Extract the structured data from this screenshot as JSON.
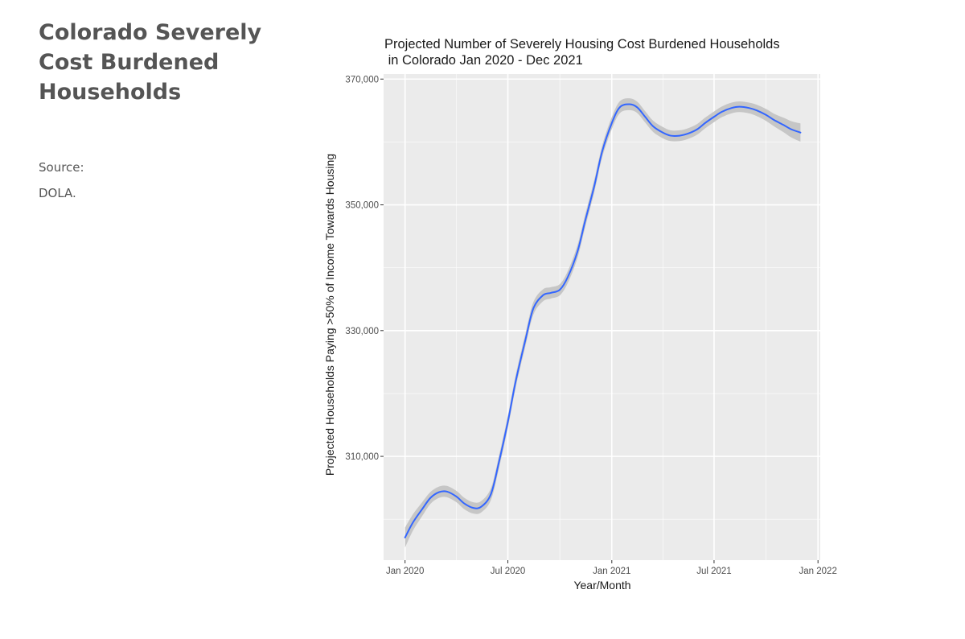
{
  "sidebar": {
    "title": "Colorado Severely Cost Burdened Households",
    "source_label": "Source:",
    "source_value": "DOLA."
  },
  "colors": {
    "panel": "#EBEBEB",
    "grid_major": "#FFFFFF",
    "line": "#3366FF",
    "ribbon": "#C4C4C4"
  },
  "chart_data": {
    "type": "line",
    "title_lines": [
      "Projected Number of Severely Housing Cost Burdened Households",
      " in Colorado Jan 2020 - Dec 2021"
    ],
    "xlabel": "Year/Month",
    "ylabel": "Projected Households Paying >50% of Income Towards Housing",
    "xlim": [
      "2019-11-24",
      "2022-01-05"
    ],
    "ylim": [
      293500,
      370800
    ],
    "x_ticks": [
      "2020-01-01",
      "2020-07-01",
      "2021-01-01",
      "2021-07-01",
      "2022-01-01"
    ],
    "x_tick_labels": [
      "Jan 2020",
      "Jul 2020",
      "Jan 2021",
      "Jul 2021",
      "Jan 2022"
    ],
    "y_ticks": [
      310000,
      330000,
      350000,
      370000
    ],
    "y_tick_labels": [
      "310,000",
      "330,000",
      "350,000",
      "370,000"
    ],
    "y_minor_ticks": [
      300000,
      320000,
      340000,
      360000
    ],
    "grid": true,
    "series": [
      {
        "x": [
          "2020-01-01",
          "2020-01-15",
          "2020-02-01",
          "2020-02-15",
          "2020-03-01",
          "2020-03-15",
          "2020-04-01",
          "2020-04-15",
          "2020-05-01",
          "2020-05-15",
          "2020-06-01",
          "2020-06-15",
          "2020-07-01",
          "2020-07-15",
          "2020-08-01",
          "2020-08-15",
          "2020-09-01",
          "2020-09-15",
          "2020-10-01",
          "2020-10-15",
          "2020-11-01",
          "2020-11-15",
          "2020-12-01",
          "2020-12-15",
          "2021-01-01",
          "2021-01-15",
          "2021-02-01",
          "2021-02-15",
          "2021-03-01",
          "2021-03-15",
          "2021-04-01",
          "2021-04-15",
          "2021-05-01",
          "2021-05-15",
          "2021-06-01",
          "2021-06-15",
          "2021-07-01",
          "2021-07-15",
          "2021-08-01",
          "2021-08-15",
          "2021-09-01",
          "2021-09-15",
          "2021-10-01",
          "2021-10-15",
          "2021-11-01",
          "2021-11-15",
          "2021-12-01"
        ],
        "y": [
          297100,
          299500,
          301700,
          303400,
          304300,
          304400,
          303600,
          302500,
          301800,
          302000,
          304000,
          309000,
          315500,
          322000,
          328500,
          333500,
          335600,
          336000,
          336500,
          338500,
          342500,
          347500,
          353000,
          358500,
          363000,
          365500,
          366000,
          365500,
          364000,
          362500,
          361500,
          361000,
          361000,
          361300,
          362000,
          363000,
          364000,
          364800,
          365400,
          365600,
          365400,
          365000,
          364300,
          363500,
          362700,
          362000,
          361500
        ],
        "ci_halfwidth": [
          1600,
          1300,
          1100,
          950,
          900,
          900,
          900,
          900,
          900,
          900,
          950,
          1000,
          1000,
          1000,
          1000,
          1000,
          950,
          900,
          900,
          950,
          1000,
          1000,
          1000,
          950,
          950,
          950,
          950,
          900,
          900,
          900,
          900,
          850,
          850,
          850,
          850,
          850,
          850,
          850,
          850,
          850,
          850,
          900,
          950,
          1000,
          1150,
          1300,
          1450
        ]
      }
    ]
  }
}
